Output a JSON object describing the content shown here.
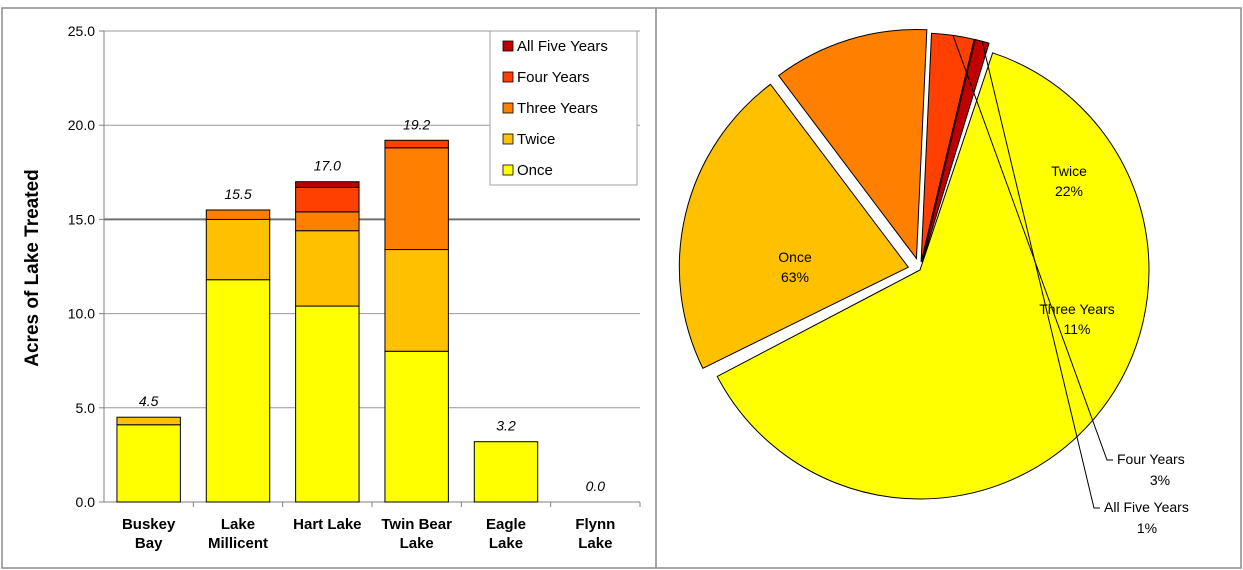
{
  "chart_data": [
    {
      "type": "bar",
      "stacked": true,
      "ylabel": "Acres of Lake Treated",
      "ylim": [
        0,
        25
      ],
      "yticks": [
        "0.0",
        "5.0",
        "10.0",
        "15.0",
        "20.0",
        "25.0"
      ],
      "reference_line": 15,
      "categories": [
        "Buskey\nBay",
        "Lake\nMillicent",
        "Hart Lake",
        "Twin Bear\nLake",
        "Eagle\nLake",
        "Flynn\nLake"
      ],
      "totals": [
        "4.5",
        "15.5",
        "17.0",
        "19.2",
        "3.2",
        "0.0"
      ],
      "legend_position": "top-right",
      "series": [
        {
          "name": "Once",
          "color": "#FFFF00",
          "values": [
            4.1,
            11.8,
            10.4,
            8.0,
            3.2,
            0.0
          ]
        },
        {
          "name": "Twice",
          "color": "#FFC000",
          "values": [
            0.4,
            3.2,
            4.0,
            5.4,
            0.0,
            0.0
          ]
        },
        {
          "name": "Three Years",
          "color": "#FF8000",
          "values": [
            0.0,
            0.5,
            1.0,
            5.4,
            0.0,
            0.0
          ]
        },
        {
          "name": "Four Years",
          "color": "#FF4000",
          "values": [
            0.0,
            0.0,
            1.3,
            0.4,
            0.0,
            0.0
          ]
        },
        {
          "name": "All Five Years",
          "color": "#C00000",
          "values": [
            0.0,
            0.0,
            0.3,
            0.0,
            0.0,
            0.0
          ]
        }
      ]
    },
    {
      "type": "pie",
      "slices": [
        {
          "name": "Once",
          "percent": "63%",
          "value": 63,
          "color": "#FFFF00"
        },
        {
          "name": "Twice",
          "percent": "22%",
          "value": 22,
          "color": "#FFC000"
        },
        {
          "name": "Three Years",
          "percent": "11%",
          "value": 11,
          "color": "#FF8000"
        },
        {
          "name": "Four Years",
          "percent": "3%",
          "value": 3,
          "color": "#FF4000"
        },
        {
          "name": "All Five Years",
          "percent": "1%",
          "value": 1,
          "color": "#C00000"
        }
      ]
    }
  ]
}
